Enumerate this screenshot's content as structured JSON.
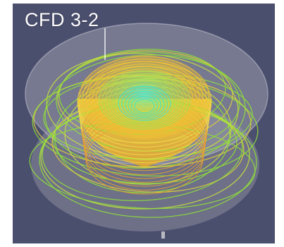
{
  "label": "CFD 3-2",
  "colors": {
    "background": "#4b4f6e",
    "disc": "#8a8c9c",
    "core_yellow": "#f2c232",
    "core_green": "#4fe08a",
    "core_cyan": "#3fe6c8",
    "outer_green": "#8fe03a",
    "outer_yellow": "#e0d040"
  }
}
